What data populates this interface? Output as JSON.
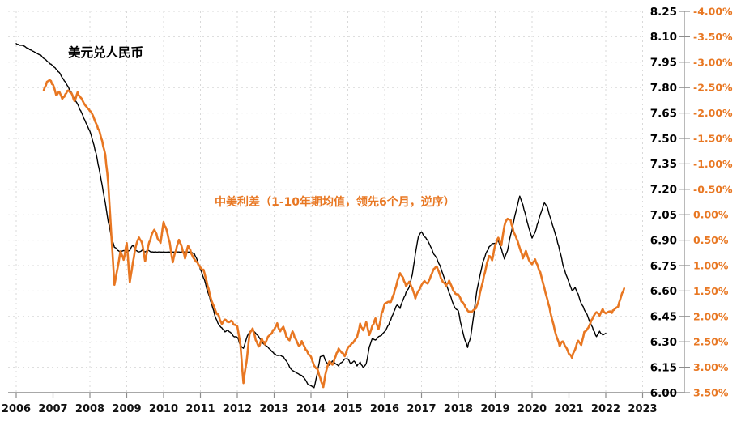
{
  "chart_data": {
    "type": "line",
    "title": "",
    "grid": true,
    "legend_position": "none",
    "x_axis": {
      "tick_labels": [
        "2006",
        "2007",
        "2008",
        "2009",
        "2010",
        "2011",
        "2012",
        "2013",
        "2014",
        "2015",
        "2016",
        "2017",
        "2018",
        "2019",
        "2020",
        "2021",
        "2022",
        "2023"
      ],
      "range": [
        2005.8,
        2023.05
      ]
    },
    "y_axis_price": {
      "side": "right-inner",
      "min": 6.0,
      "max": 8.25,
      "step": 0.15,
      "labels": [
        "8.25",
        "8.10",
        "7.95",
        "7.80",
        "7.65",
        "7.50",
        "7.35",
        "7.20",
        "7.05",
        "6.90",
        "6.75",
        "6.60",
        "6.45",
        "6.30",
        "6.15",
        "6.00"
      ],
      "color": "#000000"
    },
    "y_axis_pct": {
      "side": "right-outer",
      "min": -4.0,
      "max": 3.5,
      "step": 0.5,
      "inverted": true,
      "labels": [
        "-4.00%",
        "-3.50%",
        "-3.00%",
        "-2.50%",
        "-2.00%",
        "-1.50%",
        "-1.00%",
        "-0.50%",
        "0.00%",
        "0.50%",
        "1.00%",
        "1.50%",
        "2.00%",
        "2.50%",
        "3.00%",
        "3.50%"
      ],
      "color": "#e87722"
    },
    "series": [
      {
        "name": "美元兑人民币",
        "color": "#000000",
        "axis": "price",
        "x_start": 2006.0,
        "x_step_years": 0.0833333,
        "values": [
          8.06,
          8.05,
          8.05,
          8.04,
          8.03,
          8.02,
          8.01,
          8.0,
          7.99,
          7.97,
          7.96,
          7.94,
          7.93,
          7.91,
          7.89,
          7.86,
          7.83,
          7.8,
          7.77,
          7.73,
          7.7,
          7.66,
          7.62,
          7.58,
          7.54,
          7.48,
          7.41,
          7.32,
          7.22,
          7.12,
          7.01,
          6.92,
          6.86,
          6.84,
          6.83,
          6.84,
          6.83,
          6.84,
          6.87,
          6.84,
          6.83,
          6.84,
          6.83,
          6.84,
          6.83,
          6.83,
          6.83,
          6.83,
          6.83,
          6.83,
          6.83,
          6.83,
          6.83,
          6.83,
          6.83,
          6.83,
          6.83,
          6.83,
          6.82,
          6.78,
          6.73,
          6.68,
          6.62,
          6.56,
          6.5,
          6.44,
          6.4,
          6.38,
          6.36,
          6.37,
          6.35,
          6.33,
          6.33,
          6.28,
          6.26,
          6.32,
          6.36,
          6.37,
          6.35,
          6.33,
          6.3,
          6.28,
          6.27,
          6.25,
          6.23,
          6.22,
          6.22,
          6.21,
          6.19,
          6.15,
          6.13,
          6.12,
          6.11,
          6.1,
          6.08,
          6.05,
          6.04,
          6.03,
          6.11,
          6.21,
          6.22,
          6.18,
          6.16,
          6.19,
          6.17,
          6.16,
          6.18,
          6.2,
          6.2,
          6.17,
          6.19,
          6.16,
          6.18,
          6.15,
          6.17,
          6.27,
          6.32,
          6.31,
          6.33,
          6.34,
          6.36,
          6.39,
          6.43,
          6.48,
          6.52,
          6.5,
          6.55,
          6.59,
          6.62,
          6.7,
          6.82,
          6.92,
          6.95,
          6.92,
          6.9,
          6.86,
          6.82,
          6.79,
          6.75,
          6.7,
          6.64,
          6.59,
          6.54,
          6.5,
          6.48,
          6.39,
          6.32,
          6.27,
          6.33,
          6.46,
          6.6,
          6.69,
          6.77,
          6.82,
          6.86,
          6.88,
          6.88,
          6.9,
          6.85,
          6.79,
          6.84,
          6.93,
          7.01,
          7.09,
          7.16,
          7.11,
          7.04,
          6.97,
          6.91,
          6.95,
          7.01,
          7.07,
          7.12,
          7.09,
          7.03,
          6.97,
          6.91,
          6.84,
          6.76,
          6.7,
          6.65,
          6.6,
          6.62,
          6.58,
          6.53,
          6.49,
          6.46,
          6.41,
          6.37,
          6.33,
          6.36,
          6.34,
          6.35
        ]
      },
      {
        "name": "中美利差（1-10年期均值，领先6个月，逆序）",
        "color": "#e87722",
        "axis": "pct",
        "x_start": 2006.75,
        "x_step_years": 0.0833333,
        "values": [
          -2.45,
          -2.6,
          -2.66,
          -2.55,
          -2.35,
          -2.42,
          -2.28,
          -2.36,
          -2.45,
          -2.38,
          -2.25,
          -2.4,
          -2.3,
          -2.2,
          -2.12,
          -2.05,
          -1.95,
          -1.8,
          -1.65,
          -1.45,
          -1.2,
          -0.6,
          0.4,
          1.39,
          1.05,
          0.7,
          0.9,
          0.55,
          1.31,
          0.95,
          0.6,
          0.45,
          0.55,
          0.91,
          0.62,
          0.42,
          0.28,
          0.45,
          0.56,
          0.15,
          0.3,
          0.55,
          0.93,
          0.7,
          0.48,
          0.65,
          0.85,
          0.6,
          0.75,
          0.88,
          0.95,
          1.04,
          1.1,
          1.3,
          1.55,
          1.75,
          1.9,
          2.0,
          2.16,
          2.05,
          2.12,
          2.08,
          2.16,
          2.2,
          2.55,
          3.3,
          2.9,
          2.35,
          2.25,
          2.45,
          2.6,
          2.45,
          2.55,
          2.4,
          2.35,
          2.25,
          2.15,
          2.3,
          2.2,
          2.4,
          2.48,
          2.3,
          2.45,
          2.59,
          2.5,
          2.62,
          2.72,
          2.8,
          2.95,
          3.04,
          3.2,
          3.39,
          3.05,
          2.88,
          2.96,
          2.78,
          2.64,
          2.7,
          2.77,
          2.62,
          2.56,
          2.5,
          2.4,
          2.16,
          2.29,
          2.13,
          2.37,
          2.19,
          2.05,
          2.27,
          1.95,
          1.76,
          1.71,
          1.73,
          1.55,
          1.35,
          1.15,
          1.25,
          1.39,
          1.31,
          1.45,
          1.63,
          1.5,
          1.39,
          1.31,
          1.36,
          1.2,
          1.07,
          1.01,
          1.2,
          1.33,
          1.39,
          1.31,
          1.45,
          1.55,
          1.57,
          1.7,
          1.79,
          1.89,
          1.92,
          1.88,
          1.81,
          1.57,
          1.3,
          1.04,
          0.8,
          0.88,
          0.6,
          0.44,
          0.6,
          0.21,
          0.08,
          0.12,
          0.33,
          0.49,
          0.64,
          0.85,
          0.72,
          0.9,
          0.98,
          0.88,
          1.04,
          1.2,
          1.44,
          1.68,
          1.92,
          2.16,
          2.4,
          2.59,
          2.48,
          2.6,
          2.74,
          2.8,
          2.64,
          2.48,
          2.56,
          2.32,
          2.24,
          2.13,
          2.0,
          1.92,
          1.97,
          1.87,
          1.95,
          1.9,
          1.92,
          1.85,
          1.81,
          1.6,
          1.45
        ]
      }
    ],
    "annotations": [
      {
        "text": "美元兑人民币",
        "color": "#000000"
      },
      {
        "text": "中美利差（1-10年期均值，领先6个月，逆序）",
        "color": "#e87722"
      }
    ],
    "style_colors": {
      "grid": "#d9d9d9",
      "axis": "#8c8c8c",
      "background": "#ffffff"
    }
  }
}
